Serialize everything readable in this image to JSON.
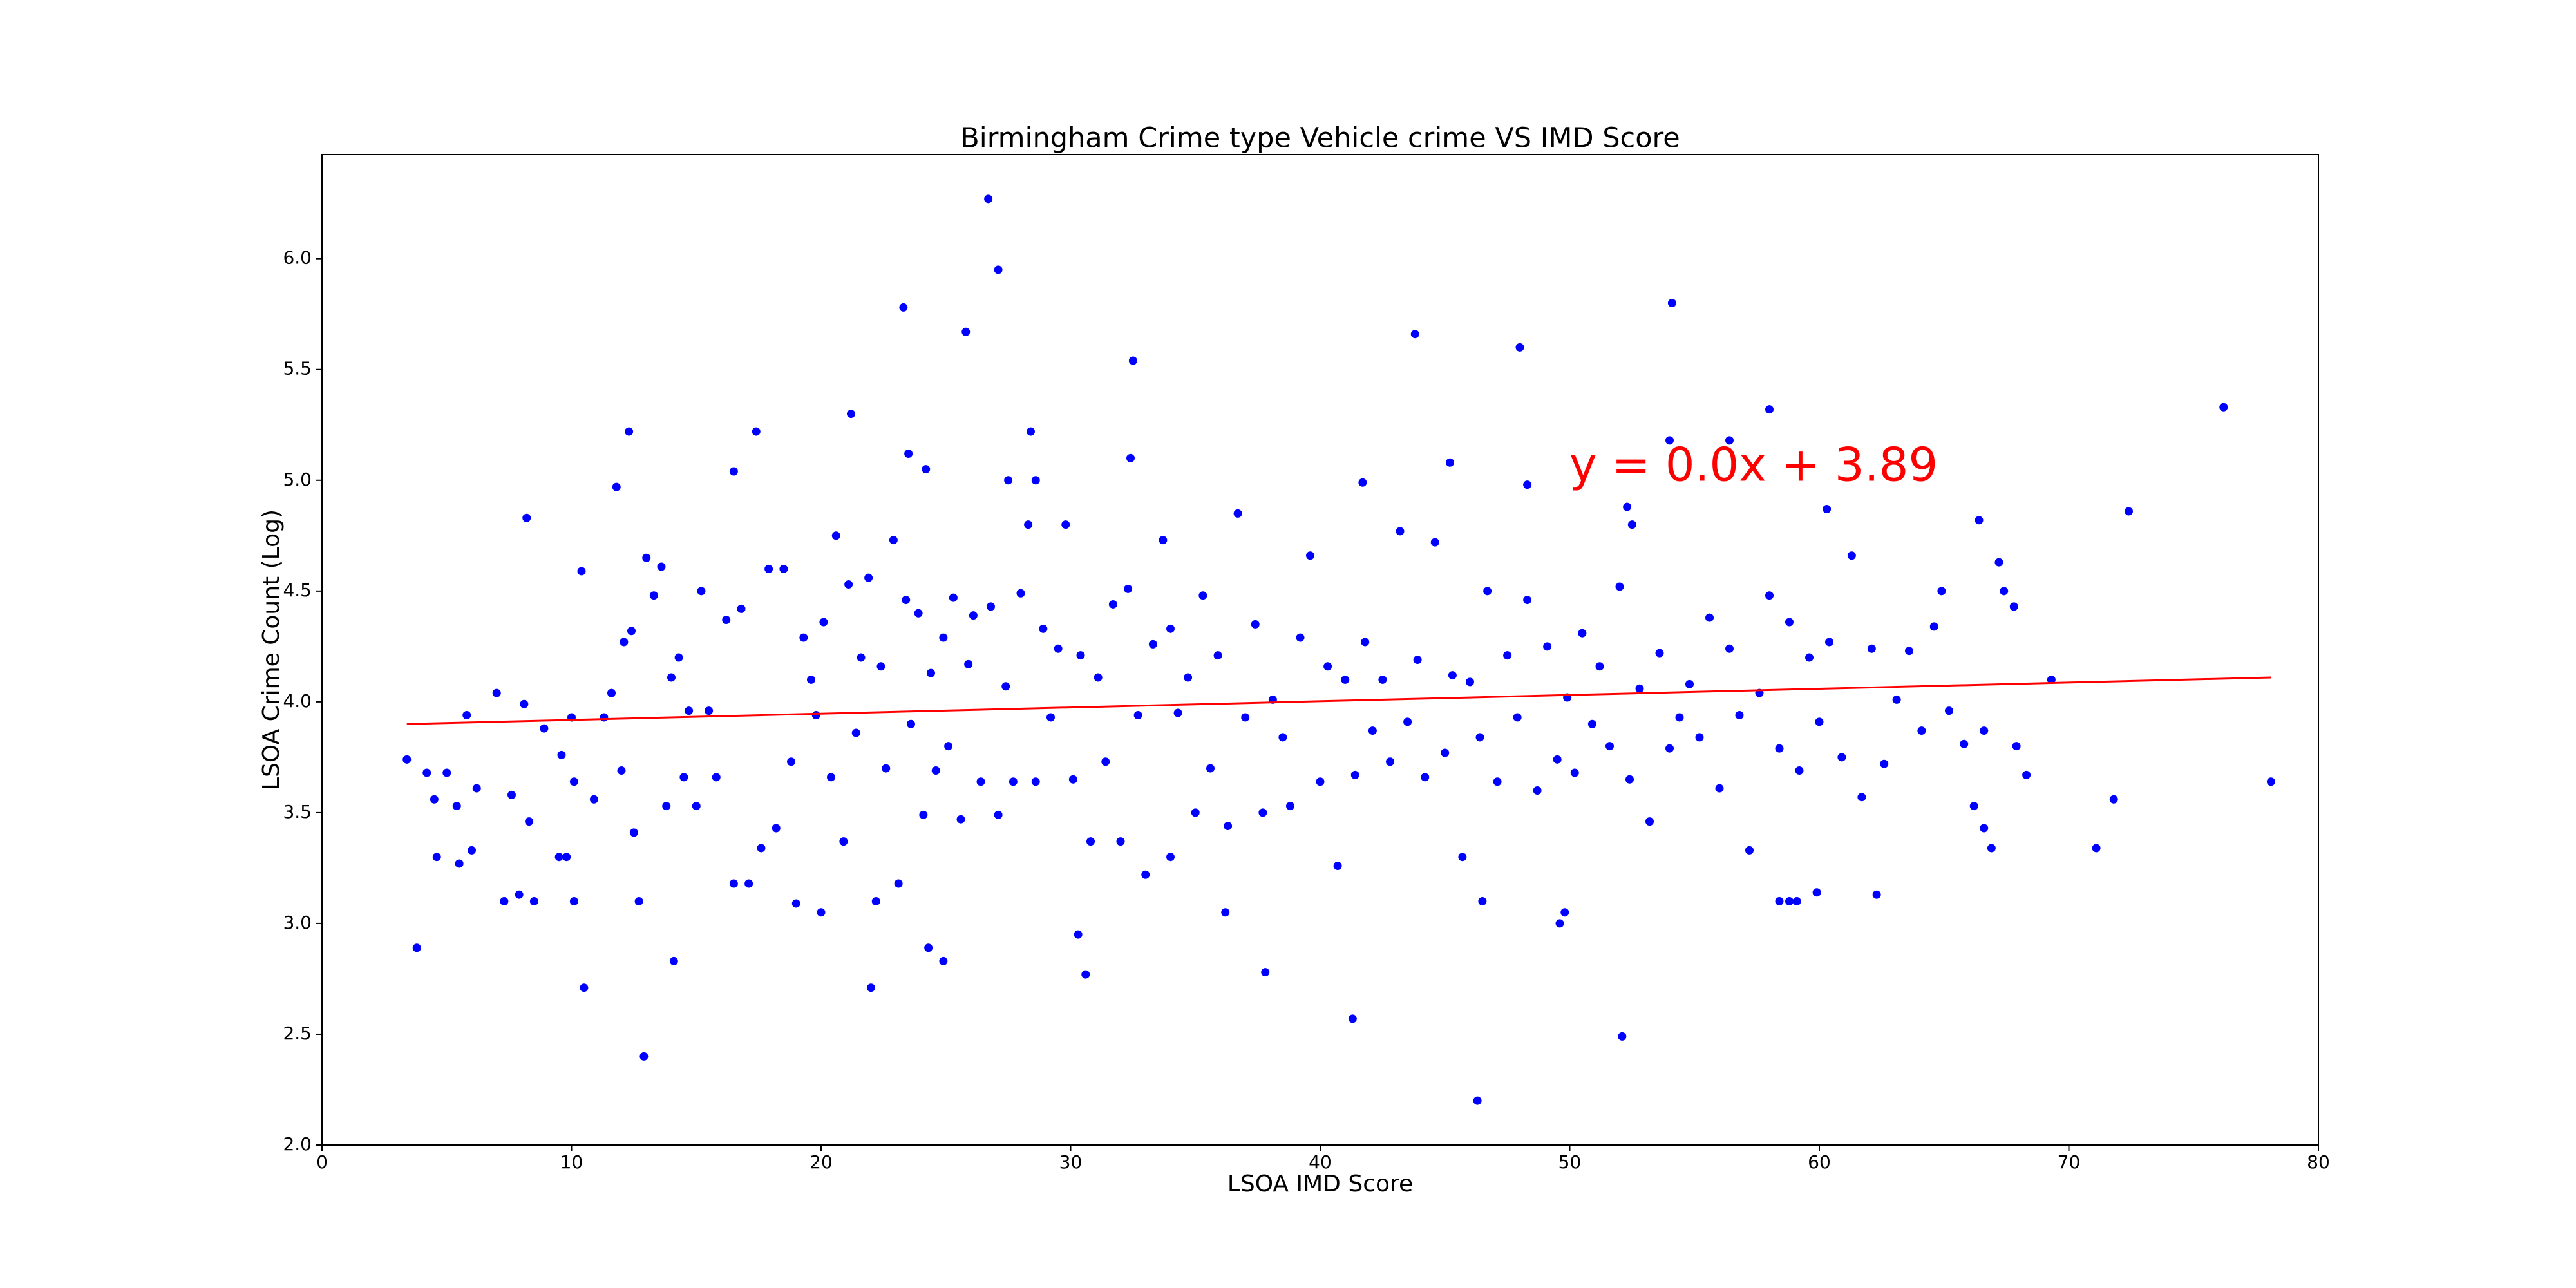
{
  "chart_data": {
    "type": "scatter",
    "title": "Birmingham Crime type Vehicle crime VS IMD Score",
    "x_label": "LSOA IMD Score",
    "y_label": "LSOA Crime Count (Log)",
    "annotation": "y = 0.0x + 3.89",
    "color": "#0000ff",
    "x": [
      26.7,
      27.1,
      23.3,
      25.8,
      32.5,
      43.8,
      48,
      54.1,
      76.2,
      58,
      21.2,
      12.3,
      17.4,
      28.4,
      23.5,
      32.4,
      45.2,
      54,
      56.4,
      11.8,
      8.2,
      16.5,
      24.2,
      27.5,
      28.6,
      41.7,
      48.3,
      52.3,
      52.5,
      72.4,
      66.4,
      60.3,
      3.4,
      3.8,
      10.5,
      12.9,
      14.1,
      22,
      24.3,
      24.9,
      30.3,
      30.6,
      37.8,
      41.3,
      46.3,
      52.1,
      49.6,
      49.8,
      78.1,
      71.1,
      71.8,
      69.3,
      67.8,
      67.4,
      68.3,
      66.9,
      66.6,
      64.9,
      62.3,
      59.9,
      59.1,
      58.4,
      58.8,
      46.5,
      34,
      36.2,
      20,
      12.7,
      10.1,
      8.5,
      7.3,
      5.5,
      4.6,
      9.5,
      9.8,
      6,
      4.2,
      4.5,
      5,
      5.4,
      5.8,
      6.2,
      7,
      7.6,
      7.9,
      8.1,
      8.3,
      8.9,
      9.6,
      10,
      10.1,
      10.4,
      10.9,
      11.3,
      11.6,
      12,
      12.1,
      12.4,
      12.5,
      13,
      13.3,
      13.6,
      13.8,
      14,
      14.3,
      14.5,
      14.7,
      15,
      15.2,
      15.5,
      15.8,
      16.2,
      16.5,
      16.8,
      17.1,
      17.6,
      17.9,
      18.2,
      18.5,
      18.8,
      19,
      19.3,
      19.6,
      19.8,
      20.1,
      20.4,
      20.6,
      20.9,
      21.1,
      21.4,
      21.6,
      21.9,
      22.2,
      22.4,
      22.6,
      22.9,
      23.1,
      23.4,
      23.6,
      23.9,
      24.1,
      24.4,
      24.6,
      24.9,
      25.1,
      25.3,
      25.6,
      25.9,
      26.1,
      26.4,
      26.8,
      27.1,
      27.4,
      27.7,
      28,
      28.3,
      28.6,
      28.9,
      29.2,
      29.5,
      29.8,
      30.1,
      30.4,
      30.8,
      31.1,
      31.4,
      31.7,
      32,
      32.3,
      32.7,
      33,
      33.3,
      33.7,
      34,
      34.3,
      34.7,
      35,
      35.3,
      35.6,
      35.9,
      36.3,
      36.7,
      37,
      37.4,
      37.7,
      38.1,
      38.5,
      38.8,
      39.2,
      39.6,
      40,
      40.3,
      40.7,
      41,
      41.4,
      41.8,
      42.1,
      42.5,
      42.8,
      43.2,
      43.5,
      43.9,
      44.2,
      44.6,
      45,
      45.3,
      45.7,
      46,
      46.4,
      46.7,
      47.1,
      47.5,
      47.9,
      48.3,
      48.7,
      49.1,
      49.5,
      49.9,
      50.2,
      50.5,
      50.9,
      51.2,
      51.6,
      52,
      52.4,
      52.8,
      53.2,
      53.6,
      54,
      54.4,
      54.8,
      55.2,
      55.6,
      56,
      56.4,
      56.8,
      57.2,
      57.6,
      58,
      58.4,
      58.8,
      59.2,
      59.6,
      60,
      60.4,
      60.9,
      61.3,
      61.7,
      62.1,
      62.6,
      63.1,
      63.6,
      64.1,
      64.6,
      65.2,
      65.8,
      66.2,
      66.6,
      67.2,
      67.9
    ],
    "values": [
      6.27,
      5.95,
      5.78,
      5.67,
      5.54,
      5.66,
      5.6,
      5.8,
      5.33,
      5.32,
      5.3,
      5.22,
      5.22,
      5.22,
      5.12,
      5.1,
      5.08,
      5.18,
      5.18,
      4.97,
      4.83,
      5.04,
      5.05,
      5.0,
      5.0,
      4.99,
      4.98,
      4.88,
      4.8,
      4.86,
      4.82,
      4.87,
      3.74,
      2.89,
      2.71,
      2.4,
      2.83,
      2.71,
      2.89,
      2.83,
      2.95,
      2.77,
      2.78,
      2.57,
      2.2,
      2.49,
      3.0,
      3.05,
      3.64,
      3.34,
      3.56,
      4.1,
      4.43,
      4.5,
      3.67,
      3.34,
      3.43,
      4.5,
      3.13,
      3.14,
      3.1,
      3.1,
      3.1,
      3.1,
      3.3,
      3.05,
      3.05,
      3.1,
      3.1,
      3.1,
      3.1,
      3.27,
      3.3,
      3.3,
      3.3,
      3.33,
      3.68,
      3.56,
      3.68,
      3.53,
      3.94,
      3.61,
      4.04,
      3.58,
      3.13,
      3.99,
      3.46,
      3.88,
      3.76,
      3.93,
      3.64,
      4.59,
      3.56,
      3.93,
      4.04,
      3.69,
      4.27,
      4.32,
      3.41,
      4.65,
      4.48,
      4.61,
      3.53,
      4.11,
      4.2,
      3.66,
      3.96,
      3.53,
      4.5,
      3.96,
      3.66,
      4.37,
      3.18,
      4.42,
      3.18,
      3.34,
      4.6,
      3.43,
      4.6,
      3.73,
      3.09,
      4.29,
      4.1,
      3.94,
      4.36,
      3.66,
      4.75,
      3.37,
      4.53,
      3.86,
      4.2,
      4.56,
      3.1,
      4.16,
      3.7,
      4.73,
      3.18,
      4.46,
      3.9,
      4.4,
      3.49,
      4.13,
      3.69,
      4.29,
      3.8,
      4.47,
      3.47,
      4.17,
      4.39,
      3.64,
      4.43,
      3.49,
      4.07,
      3.64,
      4.49,
      4.8,
      3.64,
      4.33,
      3.93,
      4.24,
      4.8,
      3.65,
      4.21,
      3.37,
      4.11,
      3.73,
      4.44,
      3.37,
      4.51,
      3.94,
      3.22,
      4.26,
      4.73,
      4.33,
      3.95,
      4.11,
      3.5,
      4.48,
      3.7,
      4.21,
      3.44,
      4.85,
      3.93,
      4.35,
      3.5,
      4.01,
      3.84,
      3.53,
      4.29,
      4.66,
      3.64,
      4.16,
      3.26,
      4.1,
      3.67,
      4.27,
      3.87,
      4.1,
      3.73,
      4.77,
      3.91,
      4.19,
      3.66,
      4.72,
      3.77,
      4.12,
      3.3,
      4.09,
      3.84,
      4.5,
      3.64,
      4.21,
      3.93,
      4.46,
      3.6,
      4.25,
      3.74,
      4.02,
      3.68,
      4.31,
      3.9,
      4.16,
      3.8,
      4.52,
      3.65,
      4.06,
      3.46,
      4.22,
      3.79,
      3.93,
      4.08,
      3.84,
      4.38,
      3.61,
      4.24,
      3.94,
      3.33,
      4.04,
      4.48,
      3.79,
      4.36,
      3.69,
      4.2,
      3.91,
      4.27,
      3.75,
      4.66,
      3.57,
      4.24,
      3.72,
      4.01,
      4.23,
      3.87,
      4.34,
      3.96,
      3.81,
      3.53,
      3.87,
      4.63,
      3.8
    ],
    "trend_line": {
      "x": [
        3.4,
        78.1
      ],
      "values": [
        3.9,
        4.11
      ],
      "color": "#ff0000"
    },
    "xlim": [
      0,
      80
    ],
    "ylim": [
      2.0,
      6.47
    ],
    "xticks": [
      0,
      10,
      20,
      30,
      40,
      50,
      60,
      70,
      80
    ],
    "yticks": [
      {
        "value": 2.0,
        "label": "2.0"
      },
      {
        "value": 2.5,
        "label": "2.5"
      },
      {
        "value": 3.0,
        "label": "3.0"
      },
      {
        "value": 3.5,
        "label": "3.5"
      },
      {
        "value": 4.0,
        "label": "4.0"
      },
      {
        "value": 4.5,
        "label": "4.5"
      },
      {
        "value": 5.0,
        "label": "5.0"
      },
      {
        "value": 5.5,
        "label": "5.5"
      },
      {
        "value": 6.0,
        "label": "6.0"
      }
    ]
  }
}
